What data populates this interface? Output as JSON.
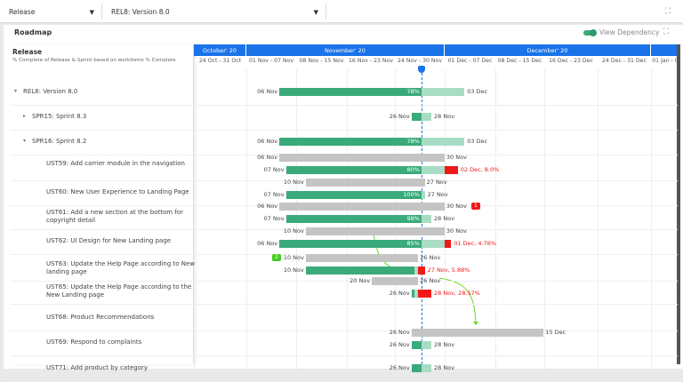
{
  "toolbar": {
    "type_select": "Release",
    "release_select": "REL8: Version 8.0"
  },
  "panel": {
    "title": "Roadmap",
    "view_dependency": "View Dependency",
    "view_dependency_on": true
  },
  "left_header": {
    "title": "Release",
    "subtitle": "% Complete of Release & Sprint based on workitems % Complete"
  },
  "months": [
    "October' 20",
    "November' 20",
    "December' 20"
  ],
  "weeks": [
    "24 Oct - 31 Oct",
    "01 Nov - 07 Nov",
    "08 Nov - 15 Nov",
    "16 Nov - 23 Nov",
    "24 Nov - 30 Nov",
    "01 Dec - 07 Dec",
    "08 Dec - 15 Dec",
    "16 Dec - 23 Dec",
    "24 Dec - 31 Dec",
    "01 Jan - 0"
  ],
  "today": "27 Nov",
  "colors": {
    "accent": "#1a73e8",
    "done": "#3aaa7a",
    "remaining": "#a8dcc4",
    "planned": "#c4c4c4",
    "overdue": "#f01818",
    "dependency": "#66dd22"
  },
  "rows": [
    {
      "label": "REL8: Version 8.0",
      "toggle": "▾",
      "indent": 0,
      "actual": {
        "start": "06 Nov",
        "done": "27 Nov",
        "end": "03 Dec",
        "pct": "78%",
        "start_label": "06 Nov",
        "end_label": "03 Dec"
      }
    },
    {
      "label": "SPR15: Sprint 8.3",
      "toggle": "▸",
      "indent": 1,
      "actual": {
        "start": "26 Nov",
        "done": "27 Nov",
        "end": "28 Nov",
        "start_label": "26 Nov",
        "end_label": "28 Nov"
      }
    },
    {
      "label": "SPR16: Sprint 8.2",
      "toggle": "▾",
      "indent": 1,
      "actual": {
        "start": "06 Nov",
        "done": "27 Nov",
        "end": "03 Dec",
        "pct": "78%",
        "start_label": "06 Nov",
        "end_label": "03 Dec"
      }
    },
    {
      "label": "UST59: Add carrier module in the navigation",
      "indent": 2,
      "planned": {
        "start": "06 Nov",
        "end": "30 Nov",
        "start_label": "06 Nov",
        "end_label": "30 Nov"
      },
      "actual": {
        "start": "07 Nov",
        "done": "27 Nov",
        "end": "30 Nov",
        "overdue": "02 Dec",
        "pct": "80%",
        "start_label": "07 Nov",
        "end_label": "02 Dec, 8.0%"
      }
    },
    {
      "label": "UST60: New User Experience to Landing Page",
      "indent": 2,
      "planned": {
        "start": "10 Nov",
        "end": "27 Nov",
        "start_label": "10 Nov",
        "end_label": "27 Nov"
      },
      "actual": {
        "start": "07 Nov",
        "done": "27 Nov",
        "end": "27 Nov",
        "pct": "100%",
        "start_label": "07 Nov",
        "end_label": "27 Nov"
      }
    },
    {
      "label": "UST61: Add a new section at the bottom for copyright detail",
      "indent": 2,
      "planned": {
        "start": "06 Nov",
        "end": "30 Nov",
        "start_label": "06 Nov",
        "end_label": "30 Nov",
        "badge": "1",
        "badge_color": "#f01818"
      },
      "actual": {
        "start": "07 Nov",
        "done": "27 Nov",
        "end": "28 Nov",
        "pct": "98%",
        "start_label": "07 Nov",
        "end_label": "28 Nov"
      }
    },
    {
      "label": "UST62: UI Design for New Landing page",
      "indent": 2,
      "planned": {
        "start": "10 Nov",
        "end": "30 Nov",
        "start_label": "10 Nov",
        "end_label": "30 Nov"
      },
      "actual": {
        "start": "06 Nov",
        "done": "27 Nov",
        "end": "30 Nov",
        "overdue": "01 Dec",
        "pct": "85%",
        "start_label": "06 Nov",
        "end_label": "01 Dec, 4.76%"
      }
    },
    {
      "label": "UST63: Update the Help Page according to New landing page",
      "indent": 2,
      "planned": {
        "start": "10 Nov",
        "end": "26 Nov",
        "start_label": "10 Nov",
        "end_label": "26 Nov",
        "badge_left": "2",
        "badge_color": "#44cc22"
      },
      "actual": {
        "start": "10 Nov",
        "done": "26 Nov",
        "end": "26 Nov",
        "overdue": "27 Nov",
        "start_label": "10 Nov",
        "end_label": "27 Nov, 5.88%"
      }
    },
    {
      "label": "UST65: Update the Help Page according to the New Landing page",
      "indent": 2,
      "planned": {
        "start": "20 Nov",
        "end": "26 Nov",
        "start_label": "20 Nov",
        "end_label": "26 Nov"
      },
      "actual": {
        "start": "26 Nov",
        "done": "26 Nov",
        "end": "26 Nov",
        "overdue": "28 Nov",
        "start_label": "26 Nov",
        "end_label": "28 Nov, 28.57%"
      }
    },
    {
      "label": "UST68: Product Recommendations",
      "indent": 2
    },
    {
      "label": "UST69: Respond to complaints",
      "indent": 2,
      "planned": {
        "start": "26 Nov",
        "end": "15 Dec",
        "start_label": "26 Nov",
        "end_label": "15 Dec"
      },
      "actual": {
        "start": "26 Nov",
        "done": "27 Nov",
        "end": "28 Nov",
        "start_label": "26 Nov",
        "end_label": "28 Nov"
      }
    },
    {
      "label": "UST71: Add product by category",
      "indent": 2,
      "actual": {
        "start": "26 Nov",
        "done": "27 Nov",
        "end": "28 Nov",
        "start_label": "26 Nov",
        "end_label": "28 Nov"
      }
    }
  ]
}
